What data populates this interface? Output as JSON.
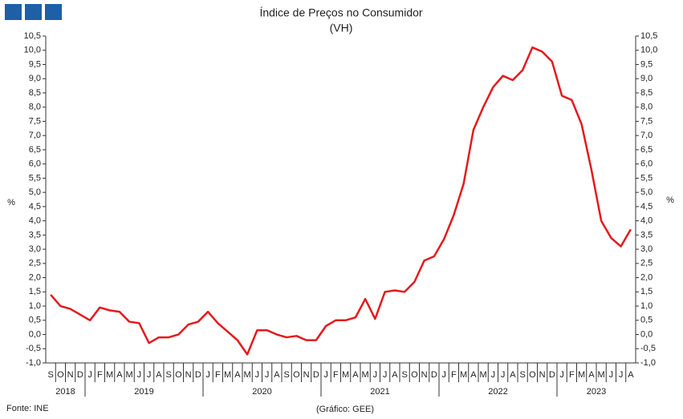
{
  "chart_data": {
    "type": "line",
    "title": "Índice de Preços no Consumidor",
    "subtitle": "(VH)",
    "ylabel": "%",
    "source": "Fonte: INE",
    "credit": "(Gráfico: GEE)",
    "color": "#e31a1c",
    "categories": [
      "S",
      "O",
      "N",
      "D",
      "J",
      "F",
      "M",
      "A",
      "M",
      "J",
      "J",
      "A",
      "S",
      "O",
      "N",
      "D",
      "J",
      "F",
      "M",
      "A",
      "M",
      "J",
      "J",
      "A",
      "S",
      "O",
      "N",
      "D",
      "J",
      "F",
      "M",
      "A",
      "M",
      "J",
      "J",
      "A",
      "S",
      "O",
      "N",
      "D",
      "J",
      "F",
      "M",
      "A",
      "M",
      "J",
      "J",
      "A",
      "S",
      "O",
      "N",
      "D",
      "J",
      "F",
      "M",
      "A",
      "M",
      "J",
      "J",
      "A"
    ],
    "years": [
      "2018",
      "2019",
      "2020",
      "2021",
      "2022",
      "2023"
    ],
    "values": [
      1.4,
      1.0,
      0.9,
      0.7,
      0.5,
      0.95,
      0.85,
      0.8,
      0.45,
      0.4,
      -0.3,
      -0.1,
      -0.1,
      0.0,
      0.35,
      0.45,
      0.8,
      0.4,
      0.1,
      -0.2,
      -0.7,
      0.15,
      0.15,
      0.0,
      -0.1,
      -0.05,
      -0.2,
      -0.2,
      0.3,
      0.5,
      0.5,
      0.6,
      1.25,
      0.55,
      1.5,
      1.55,
      1.5,
      1.85,
      2.6,
      2.75,
      3.35,
      4.2,
      5.3,
      7.2,
      8.0,
      8.7,
      9.1,
      8.95,
      9.3,
      10.1,
      9.95,
      9.6,
      8.4,
      8.25,
      7.4,
      5.8,
      4.0,
      3.4,
      3.1,
      3.7
    ],
    "ylim": [
      -1.0,
      10.5
    ],
    "yticks": [
      {
        "value": -1.0,
        "label": "-1,0"
      },
      {
        "value": -0.5,
        "label": "-0,5"
      },
      {
        "value": 0.0,
        "label": "0,0"
      },
      {
        "value": 0.5,
        "label": "0,5"
      },
      {
        "value": 1.0,
        "label": "1,0"
      },
      {
        "value": 1.5,
        "label": "1,5"
      },
      {
        "value": 2.0,
        "label": "2,0"
      },
      {
        "value": 2.5,
        "label": "2,5"
      },
      {
        "value": 3.0,
        "label": "3,0"
      },
      {
        "value": 3.5,
        "label": "3,5"
      },
      {
        "value": 4.0,
        "label": "4,0"
      },
      {
        "value": 4.5,
        "label": "4,5"
      },
      {
        "value": 5.0,
        "label": "5,0"
      },
      {
        "value": 5.5,
        "label": "5,5"
      },
      {
        "value": 6.0,
        "label": "6,0"
      },
      {
        "value": 6.5,
        "label": "6,5"
      },
      {
        "value": 7.0,
        "label": "7,0"
      },
      {
        "value": 7.5,
        "label": "7,5"
      },
      {
        "value": 8.0,
        "label": "8,0"
      },
      {
        "value": 8.5,
        "label": "8,5"
      },
      {
        "value": 9.0,
        "label": "9,0"
      },
      {
        "value": 9.5,
        "label": "9,5"
      },
      {
        "value": 10.0,
        "label": "10,0"
      },
      {
        "value": 10.5,
        "label": "10,5"
      }
    ],
    "grid": false
  }
}
